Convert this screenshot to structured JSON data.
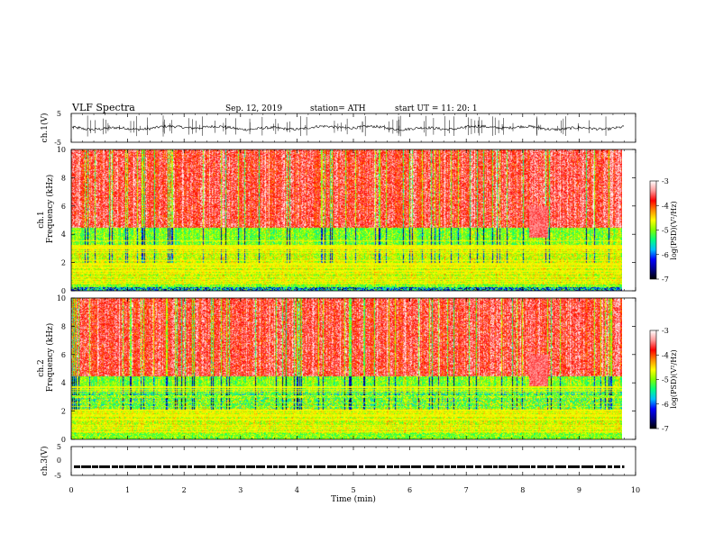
{
  "header": {
    "title": "VLF  Spectra",
    "date": "Sep. 12, 2019",
    "station": "station= ATH",
    "start_ut": "start  UT  =    11: 20: 1"
  },
  "chart_data": [
    {
      "type": "line",
      "panel": "ch1-waveform",
      "ylabel": "ch.1(V)",
      "ylim": [
        -5,
        5
      ],
      "ytick_labels": [
        "5",
        "-5"
      ],
      "xlim": [
        0,
        10
      ],
      "data_end_min": 9.8,
      "description_values": {
        "mean": 0,
        "amplitude_approx": 1.2
      }
    },
    {
      "type": "heatmap",
      "panel": "ch1-spectrogram",
      "ylabel": "ch.1\nFrequency (kHz)",
      "ylabel_top": "ch.1",
      "ylabel_bottom": "Frequency  (kHz)",
      "ylim": [
        0,
        10
      ],
      "ytick_labels": [
        "0",
        "2",
        "4",
        "6",
        "8",
        "10"
      ],
      "xlim": [
        0,
        10
      ],
      "data_end_min": 9.8,
      "colorbar": {
        "label": "log(PSD)(V²/Hz)",
        "range": [
          -7,
          -3
        ],
        "tick_labels": [
          "-3",
          "-4",
          "-5",
          "-6",
          "-7"
        ]
      }
    },
    {
      "type": "heatmap",
      "panel": "ch2-spectrogram",
      "ylabel_top": "ch.2",
      "ylabel_bottom": "Frequency  (kHz)",
      "ylim": [
        0,
        10
      ],
      "ytick_labels": [
        "0",
        "2",
        "4",
        "6",
        "8",
        "10"
      ],
      "xlim": [
        0,
        10
      ],
      "data_end_min": 9.8,
      "colorbar": {
        "label": "log(PSD)(V²/Hz)",
        "range": [
          -7,
          -3
        ],
        "tick_labels": [
          "-3",
          "-4",
          "-5",
          "-6",
          "-7"
        ]
      }
    },
    {
      "type": "line",
      "panel": "ch3-waveform",
      "ylabel": "ch.3(V)",
      "ylim": [
        -5,
        5
      ],
      "ytick_labels": [
        "5",
        "0",
        "-5"
      ],
      "xlim": [
        0,
        10
      ],
      "xlabel": "Time  (min)",
      "xtick_labels": [
        "0",
        "1",
        "2",
        "3",
        "4",
        "5",
        "6",
        "7",
        "8",
        "9",
        "10"
      ],
      "level_value": -2,
      "data_end_min": 9.8
    }
  ],
  "colors": {
    "colormap": [
      "#000000",
      "#00008b",
      "#0000ff",
      "#00bfff",
      "#00ff7f",
      "#7fff00",
      "#ffff00",
      "#ff8c00",
      "#ff0000",
      "#ff9999",
      "#ffffff"
    ]
  }
}
